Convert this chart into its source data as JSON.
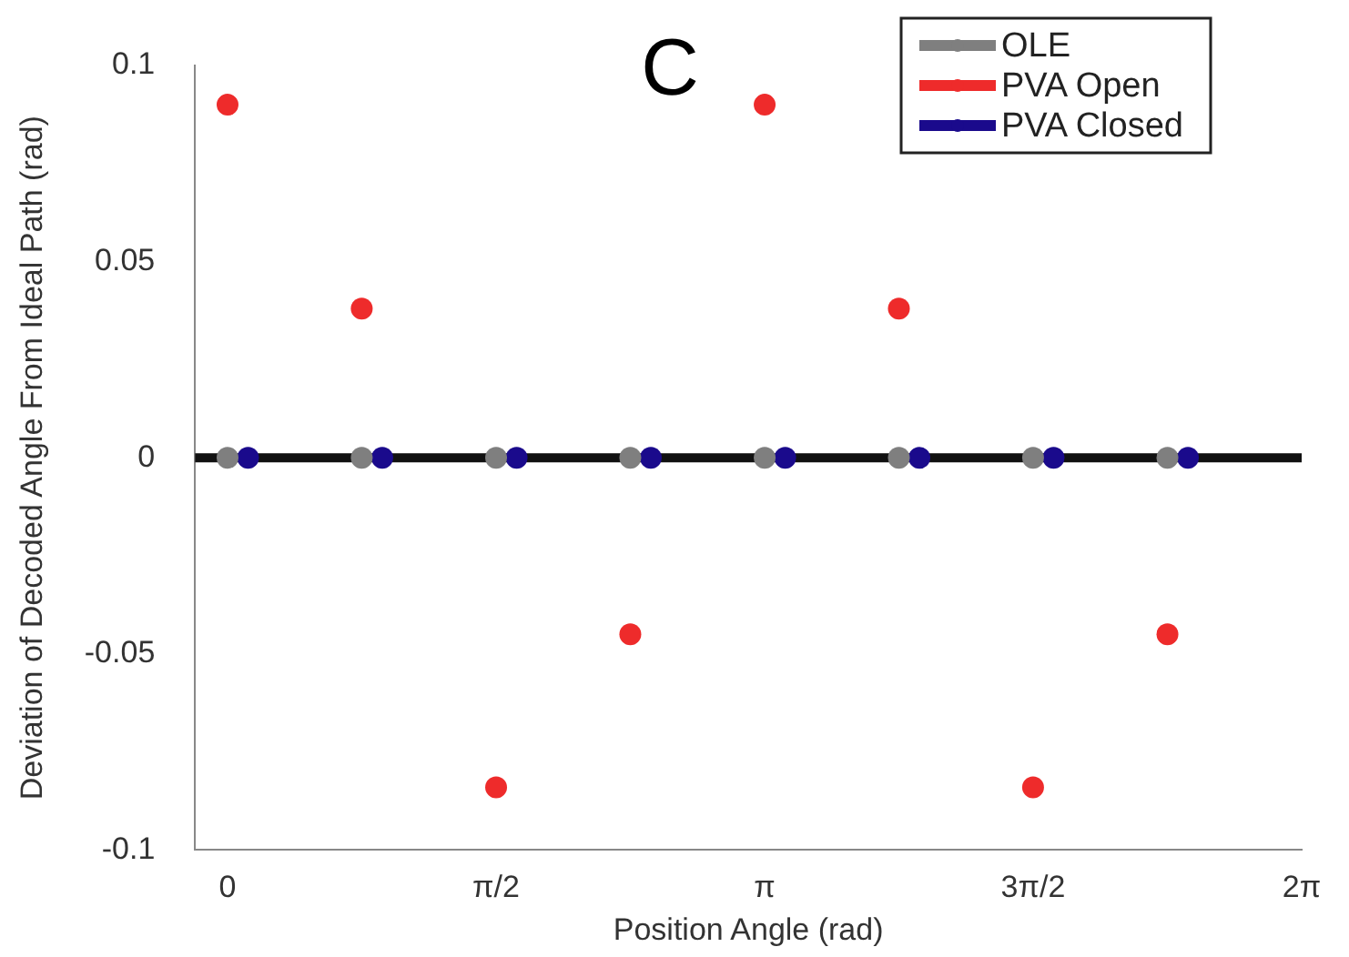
{
  "chart_data": {
    "type": "scatter",
    "title": "C",
    "xlabel": "Position Angle (rad)",
    "ylabel": "Deviation of Decoded Angle From Ideal Path (rad)",
    "xlim": [
      -0.19,
      6.2832
    ],
    "xticks": [
      0,
      {
        "value": 1.5708,
        "label": "π/2"
      },
      {
        "value": 3.1416,
        "label": "π"
      },
      {
        "value": 4.7124,
        "label": "3π/2"
      },
      {
        "value": 6.2832,
        "label": "2π"
      }
    ],
    "ylim": [
      -0.1,
      0.1
    ],
    "yticks": [
      -0.1,
      -0.05,
      0,
      0.05,
      0.1
    ],
    "series": [
      {
        "name": "OLE",
        "color": "#7f7f7f",
        "x": [
          0,
          0.785,
          1.571,
          2.356,
          3.142,
          3.927,
          4.712,
          5.498
        ],
        "values": [
          0,
          0,
          0,
          0,
          0,
          0,
          0,
          0
        ]
      },
      {
        "name": "PVA Open",
        "color": "#ee2b2b",
        "x": [
          0,
          0.785,
          1.571,
          2.356,
          3.142,
          3.927,
          4.712,
          5.498
        ],
        "values": [
          0.09,
          0.038,
          -0.084,
          -0.045,
          0.09,
          0.038,
          -0.084,
          -0.045
        ]
      },
      {
        "name": "PVA Closed",
        "color": "#1a0a8c",
        "x": [
          0.12,
          0.905,
          1.691,
          2.476,
          3.262,
          4.047,
          4.832,
          5.618
        ],
        "values": [
          0,
          0,
          0,
          0,
          0,
          0,
          0,
          0
        ]
      }
    ],
    "ref_lines": [
      {
        "axis": "y",
        "value": 0,
        "color": "#111111"
      }
    ],
    "marker": "circle",
    "grid": false,
    "legend": "top right"
  }
}
